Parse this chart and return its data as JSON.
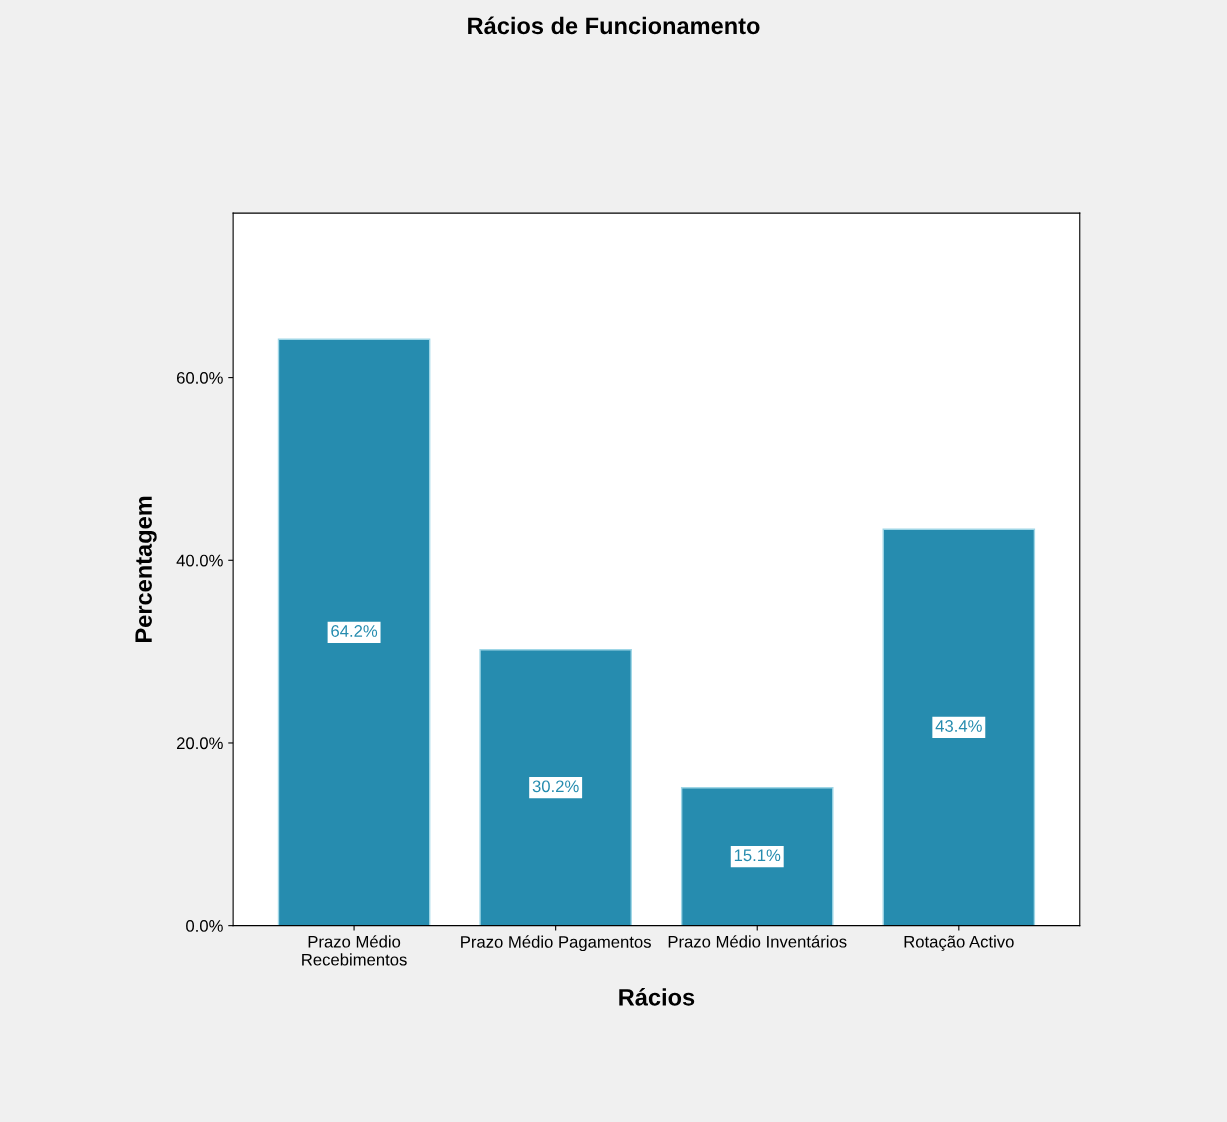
{
  "chart_data": {
    "type": "bar",
    "title": "Rácios de Funcionamento",
    "xlabel": "Rácios",
    "ylabel": "Percentagem",
    "categories": [
      "Prazo Médio\nRecebimentos",
      "Prazo Médio Pagamentos",
      "Prazo Médio Inventários",
      "Rotação Activo"
    ],
    "values": [
      64.2,
      30.2,
      15.1,
      43.4
    ],
    "value_labels": [
      "64.2%",
      "30.2%",
      "15.1%",
      "43.4%"
    ],
    "color": "#268caf",
    "ylim": [
      0,
      78
    ],
    "yticks": [
      {
        "value": 0,
        "label": "0.0%"
      },
      {
        "value": 20,
        "label": "20.0%"
      },
      {
        "value": 40,
        "label": "40.0%"
      },
      {
        "value": 60,
        "label": "60.0%"
      }
    ],
    "grid": false,
    "legend": false
  }
}
